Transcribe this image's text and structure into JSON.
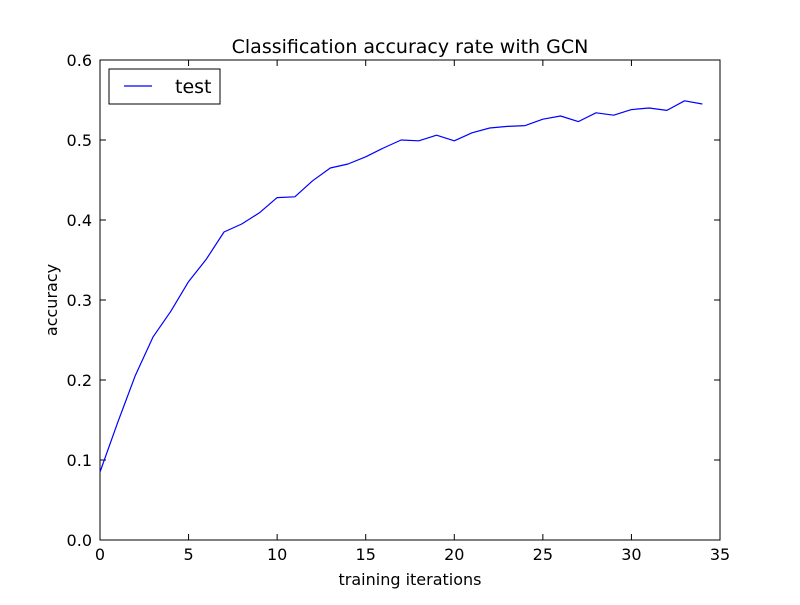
{
  "chart_data": {
    "type": "line",
    "title": "Classification accuracy rate with GCN",
    "xlabel": "training iterations",
    "ylabel": "accuracy",
    "xlim": [
      0,
      35
    ],
    "ylim": [
      0.0,
      0.6
    ],
    "xticks": [
      0,
      5,
      10,
      15,
      20,
      25,
      30,
      35
    ],
    "xtick_labels": [
      "0",
      "5",
      "10",
      "15",
      "20",
      "25",
      "30",
      "35"
    ],
    "yticks": [
      0.0,
      0.1,
      0.2,
      0.3,
      0.4,
      0.5,
      0.6
    ],
    "ytick_labels": [
      "0.0",
      "0.1",
      "0.2",
      "0.3",
      "0.4",
      "0.5",
      "0.6"
    ],
    "grid": false,
    "legend_position": "top-left",
    "series": [
      {
        "name": "test",
        "color": "#0000ff",
        "x": [
          0,
          1,
          2,
          3,
          4,
          5,
          6,
          7,
          8,
          9,
          10,
          11,
          12,
          13,
          14,
          15,
          16,
          17,
          18,
          19,
          20,
          21,
          22,
          23,
          24,
          25,
          26,
          27,
          28,
          29,
          30,
          31,
          32,
          33,
          34
        ],
        "y": [
          0.085,
          0.147,
          0.206,
          0.254,
          0.286,
          0.323,
          0.351,
          0.385,
          0.395,
          0.409,
          0.428,
          0.429,
          0.449,
          0.465,
          0.47,
          0.479,
          0.49,
          0.5,
          0.499,
          0.506,
          0.499,
          0.509,
          0.515,
          0.517,
          0.518,
          0.526,
          0.53,
          0.523,
          0.534,
          0.531,
          0.538,
          0.54,
          0.537,
          0.549,
          0.545
        ]
      }
    ]
  }
}
